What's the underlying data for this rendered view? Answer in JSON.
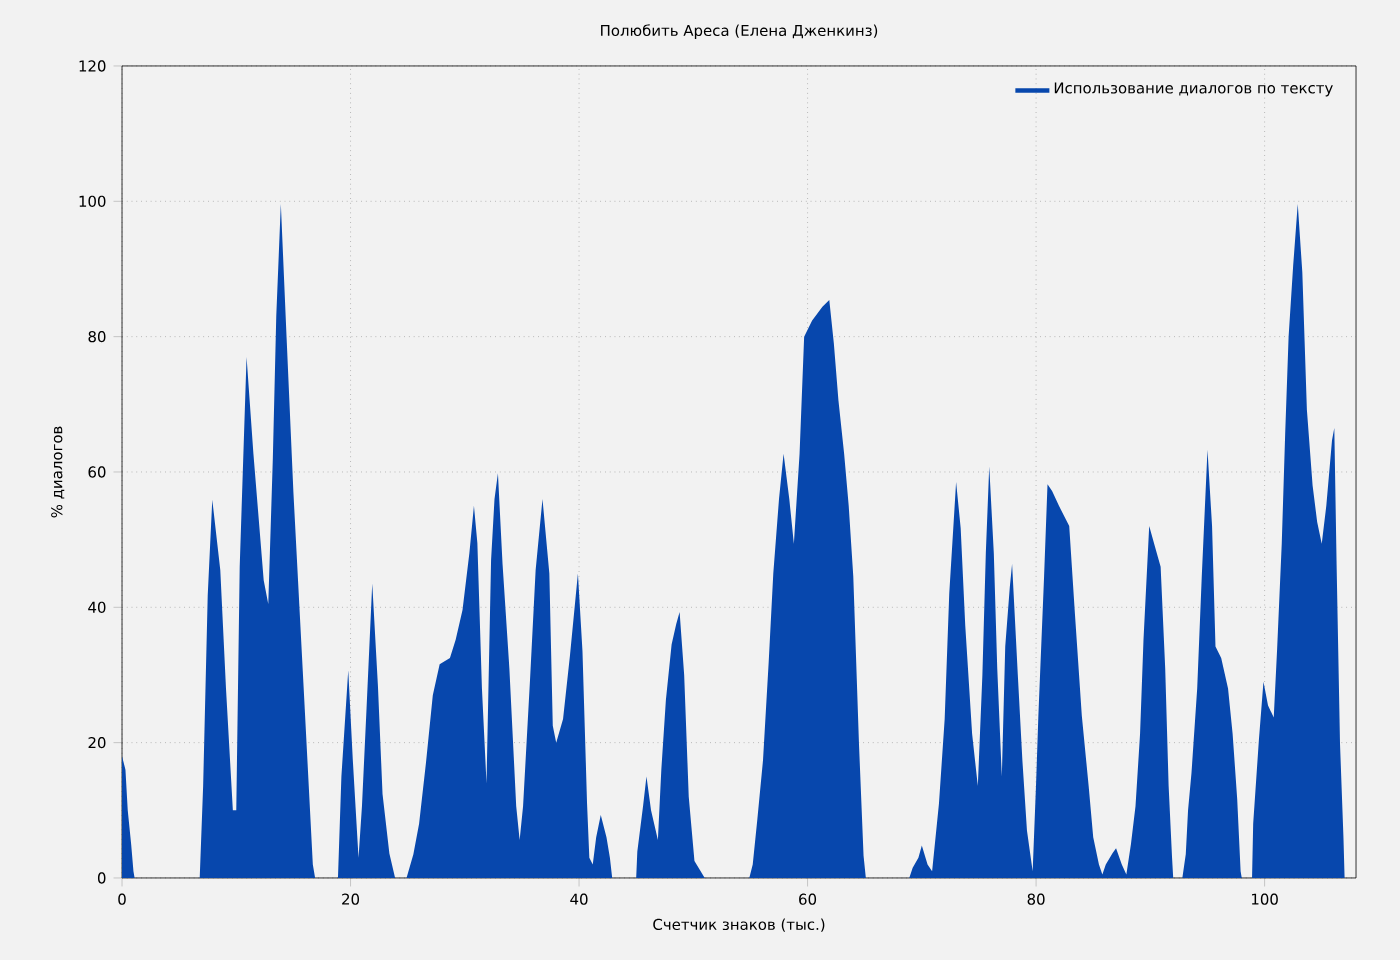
{
  "chart_data": {
    "type": "area",
    "title": "Полюбить Ареса (Елена Дженкинз)",
    "xlabel": "Счетчик знаков (тыс.)",
    "ylabel": "% диалогов",
    "xlim": [
      0,
      108
    ],
    "ylim": [
      0,
      120
    ],
    "xticks": [
      0,
      20,
      40,
      60,
      80,
      100
    ],
    "yticks": [
      0,
      20,
      40,
      60,
      80,
      100,
      120
    ],
    "grid": true,
    "legend": "top right",
    "series": [
      {
        "name": "Использование диалогов по тексту",
        "color": "#0747ad",
        "x": [
          0,
          0.3,
          0.5,
          0.8,
          1.0,
          1.1,
          6.8,
          7.1,
          7.5,
          7.9,
          8.6,
          9.1,
          9.7,
          10.0,
          10.3,
          10.9,
          11.5,
          12.4,
          12.8,
          13.2,
          13.5,
          13.9,
          14.4,
          15.0,
          15.9,
          16.7,
          16.9,
          18.9,
          19.2,
          19.8,
          20.2,
          20.7,
          21.0,
          21.4,
          21.9,
          22.4,
          22.8,
          23.4,
          23.9,
          24.9,
          25.5,
          26.0,
          26.6,
          27.2,
          27.8,
          28.7,
          29.2,
          29.8,
          30.4,
          30.8,
          31.1,
          31.5,
          31.9,
          32.3,
          32.6,
          32.9,
          33.3,
          33.9,
          34.5,
          34.8,
          35.1,
          35.7,
          36.2,
          36.8,
          37.4,
          37.7,
          38.0,
          38.6,
          39.2,
          39.9,
          40.3,
          40.7,
          40.9,
          41.2,
          41.5,
          41.9,
          42.4,
          42.7,
          42.9,
          45.0,
          45.1,
          45.6,
          45.9,
          46.3,
          46.9,
          47.2,
          47.6,
          48.1,
          48.5,
          48.8,
          49.2,
          49.6,
          50.1,
          51.0,
          54.9,
          55.2,
          55.6,
          56.1,
          56.6,
          57.0,
          57.5,
          57.9,
          58.4,
          58.8,
          59.3,
          59.7,
          60.4,
          61.3,
          61.9,
          62.3,
          62.7,
          63.2,
          63.6,
          64.0,
          64.5,
          64.9,
          65.1,
          68.9,
          69.2,
          69.7,
          70.0,
          70.5,
          70.9,
          71.5,
          72.0,
          72.4,
          73.0,
          73.4,
          73.8,
          74.4,
          74.9,
          75.3,
          75.6,
          75.9,
          76.3,
          76.6,
          77.0,
          77.3,
          77.7,
          77.9,
          78.4,
          78.8,
          79.2,
          79.7,
          80.0,
          80.2,
          80.7,
          81.0,
          81.4,
          82.0,
          82.9,
          83.4,
          84.0,
          84.6,
          85.0,
          85.5,
          85.8,
          86.1,
          86.7,
          87.0,
          87.5,
          87.9,
          88.3,
          88.7,
          89.1,
          89.4,
          89.9,
          90.4,
          90.9,
          91.3,
          91.6,
          91.9,
          92.0,
          92.8,
          93.1,
          93.3,
          93.6,
          94.1,
          94.5,
          94.9,
          95.0,
          95.4,
          95.7,
          96.2,
          96.8,
          97.2,
          97.6,
          97.9,
          98.0,
          98.9,
          99.0,
          99.5,
          99.9,
          100.3,
          100.8,
          101.1,
          101.5,
          101.8,
          102.1,
          102.5,
          102.9,
          103.3,
          103.7,
          104.2,
          104.6,
          105.0,
          105.4,
          105.9,
          106.1,
          106.3,
          106.6,
          106.9,
          107.0
        ],
        "values": [
          18,
          16,
          10,
          5,
          1,
          0,
          0,
          13.6,
          41.7,
          55.9,
          45.5,
          28,
          10,
          10,
          46,
          77,
          62.7,
          44,
          40.5,
          62,
          83,
          99.6,
          80,
          57,
          28,
          2,
          0,
          0,
          15,
          30.7,
          17.4,
          3,
          10.6,
          25,
          43.5,
          28.3,
          12.4,
          3.6,
          0,
          0,
          3.5,
          8,
          17,
          27,
          31.6,
          32.5,
          35.2,
          39.6,
          48,
          55,
          49.5,
          28,
          14,
          47,
          56,
          59.8,
          46.5,
          31,
          10.6,
          5.6,
          10.6,
          29,
          45.5,
          56,
          45,
          22.5,
          20,
          23.5,
          32.8,
          45,
          33.5,
          11,
          3,
          2,
          6,
          9.3,
          6,
          3,
          0,
          0,
          3.9,
          10.6,
          15,
          10,
          5.6,
          16,
          26.3,
          34.5,
          37.5,
          39.3,
          30,
          12,
          2.5,
          0,
          0,
          2,
          8.6,
          17.4,
          32,
          45,
          56,
          62.7,
          56,
          49.4,
          62.7,
          80,
          82.4,
          84.4,
          85.4,
          79,
          70.6,
          62.7,
          55,
          44.6,
          19.8,
          3.3,
          0,
          0,
          1.5,
          3,
          4.8,
          2,
          1,
          11,
          23.5,
          42,
          58.5,
          51.7,
          37.3,
          21.3,
          13.6,
          30,
          48,
          60.8,
          48,
          31,
          15,
          34.2,
          43,
          46.4,
          30,
          17.4,
          7,
          1,
          14,
          24,
          44.6,
          58.2,
          57.2,
          55,
          52,
          39,
          24,
          13.6,
          6,
          2,
          0.5,
          2,
          3.7,
          4.4,
          2,
          0.5,
          5,
          10.6,
          21.3,
          35.2,
          52,
          49,
          46,
          31,
          13.6,
          3,
          0,
          0,
          3.5,
          10,
          15.5,
          28,
          44.6,
          59.5,
          63.3,
          52,
          34.2,
          32.5,
          28,
          21.3,
          11.7,
          1,
          0,
          0,
          8,
          20.4,
          29,
          25.5,
          23.7,
          34,
          49.4,
          65.6,
          80,
          90.5,
          99.6,
          89.5,
          69.2,
          58,
          52.6,
          49.4,
          55,
          64.7,
          66.5,
          46.4,
          19.8,
          6,
          0
        ]
      }
    ]
  }
}
